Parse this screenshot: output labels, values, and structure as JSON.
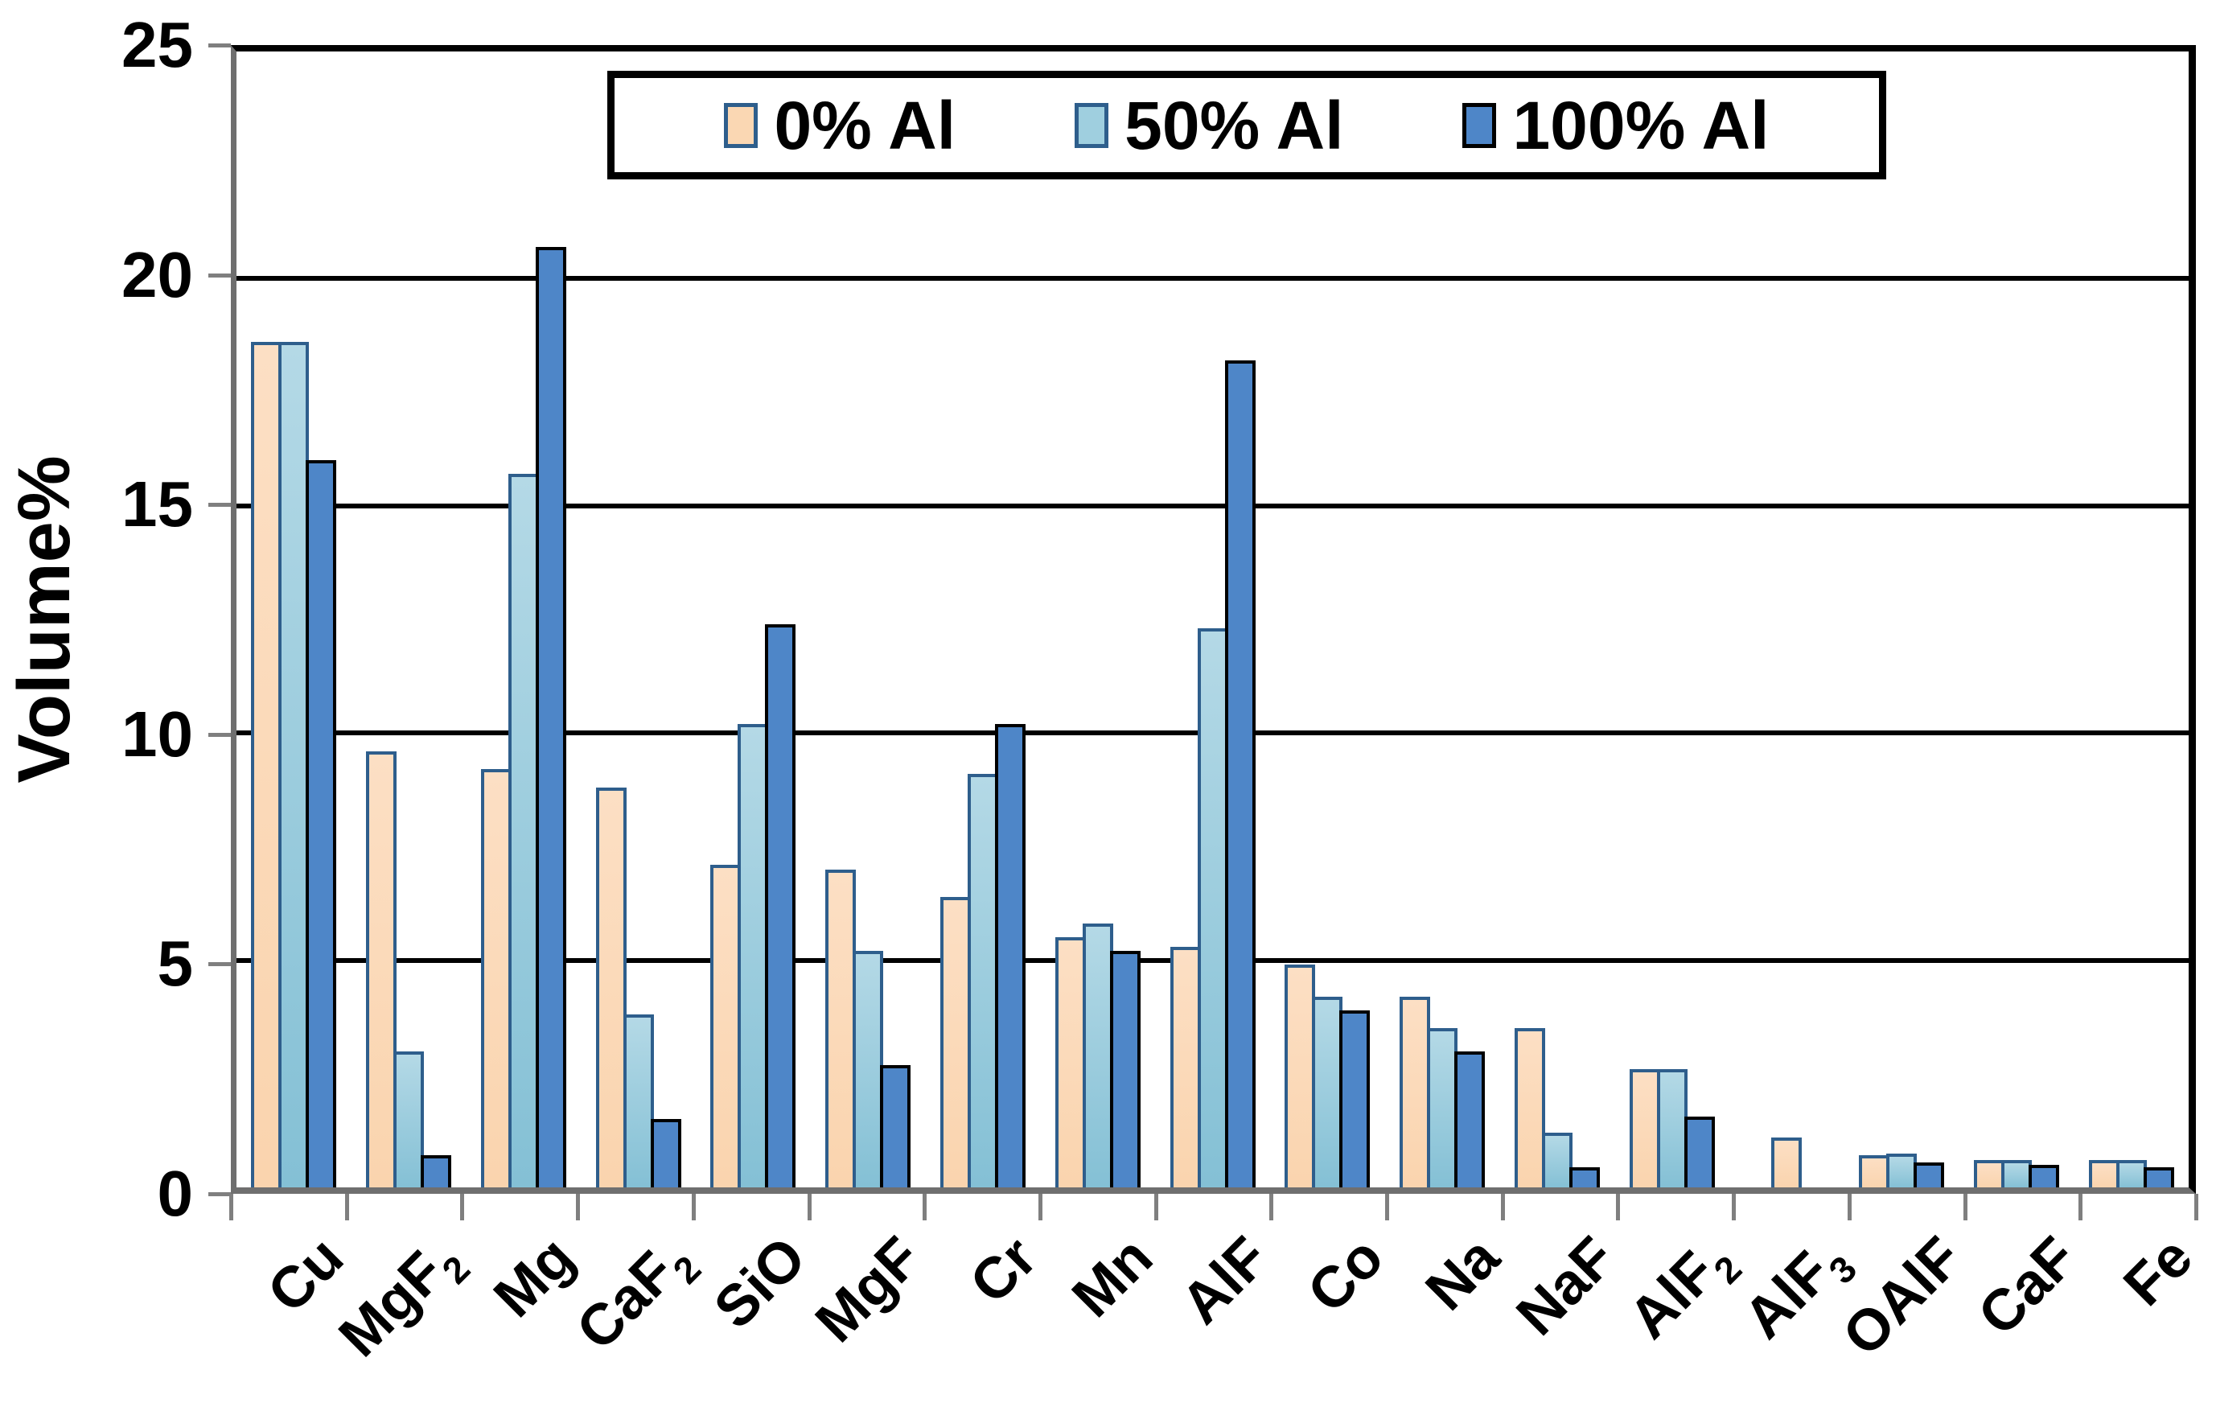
{
  "chart_data": {
    "type": "bar",
    "title": "",
    "ylabel": "Volume%",
    "xlabel": "",
    "ylim": [
      0,
      25
    ],
    "yticks": [
      0,
      5,
      10,
      15,
      20,
      25
    ],
    "grid": "horizontal-black",
    "legend_position": "top-inside-border-box",
    "categories": [
      {
        "label": "Cu",
        "sub": ""
      },
      {
        "label": "MgF",
        "sub": "2"
      },
      {
        "label": "Mg",
        "sub": ""
      },
      {
        "label": "CaF",
        "sub": "2"
      },
      {
        "label": "SiO",
        "sub": ""
      },
      {
        "label": "MgF",
        "sub": ""
      },
      {
        "label": "Cr",
        "sub": ""
      },
      {
        "label": "Mn",
        "sub": ""
      },
      {
        "label": "AlF",
        "sub": ""
      },
      {
        "label": "Co",
        "sub": ""
      },
      {
        "label": "Na",
        "sub": ""
      },
      {
        "label": "NaF",
        "sub": ""
      },
      {
        "label": "AlF",
        "sub": "2"
      },
      {
        "label": "AlF",
        "sub": "3"
      },
      {
        "label": "OAlF",
        "sub": ""
      },
      {
        "label": "CaF",
        "sub": ""
      },
      {
        "label": "Fe",
        "sub": ""
      }
    ],
    "series": [
      {
        "name": "0% Al",
        "fill_color": "#FAD7B3",
        "border_color": "#2E5E8C",
        "values": [
          18.6,
          9.6,
          9.2,
          8.8,
          7.1,
          7.0,
          6.4,
          5.5,
          5.3,
          4.9,
          4.2,
          3.5,
          2.6,
          1.1,
          0.7,
          0.6,
          0.6
        ]
      },
      {
        "name": "50% Al",
        "fill_color": "#9FCFDF",
        "border_color": "#2E5E8C",
        "values": [
          18.6,
          3.0,
          15.7,
          3.8,
          10.2,
          5.2,
          9.1,
          5.8,
          12.3,
          4.2,
          3.5,
          1.2,
          2.6,
          0,
          0.75,
          0.6,
          0.6
        ]
      },
      {
        "name": "100% Al",
        "fill_color": "#4E86C8",
        "border_color": "#000000",
        "values": [
          16.0,
          0.7,
          20.7,
          1.5,
          12.4,
          2.7,
          10.2,
          5.2,
          18.2,
          3.9,
          3.0,
          0.45,
          1.55,
          0,
          0.55,
          0.5,
          0.45
        ]
      }
    ],
    "axis_colors": {
      "gridline": "#000000",
      "axis_line": "#6F6F6F",
      "tick": "#7F7F7F"
    }
  }
}
